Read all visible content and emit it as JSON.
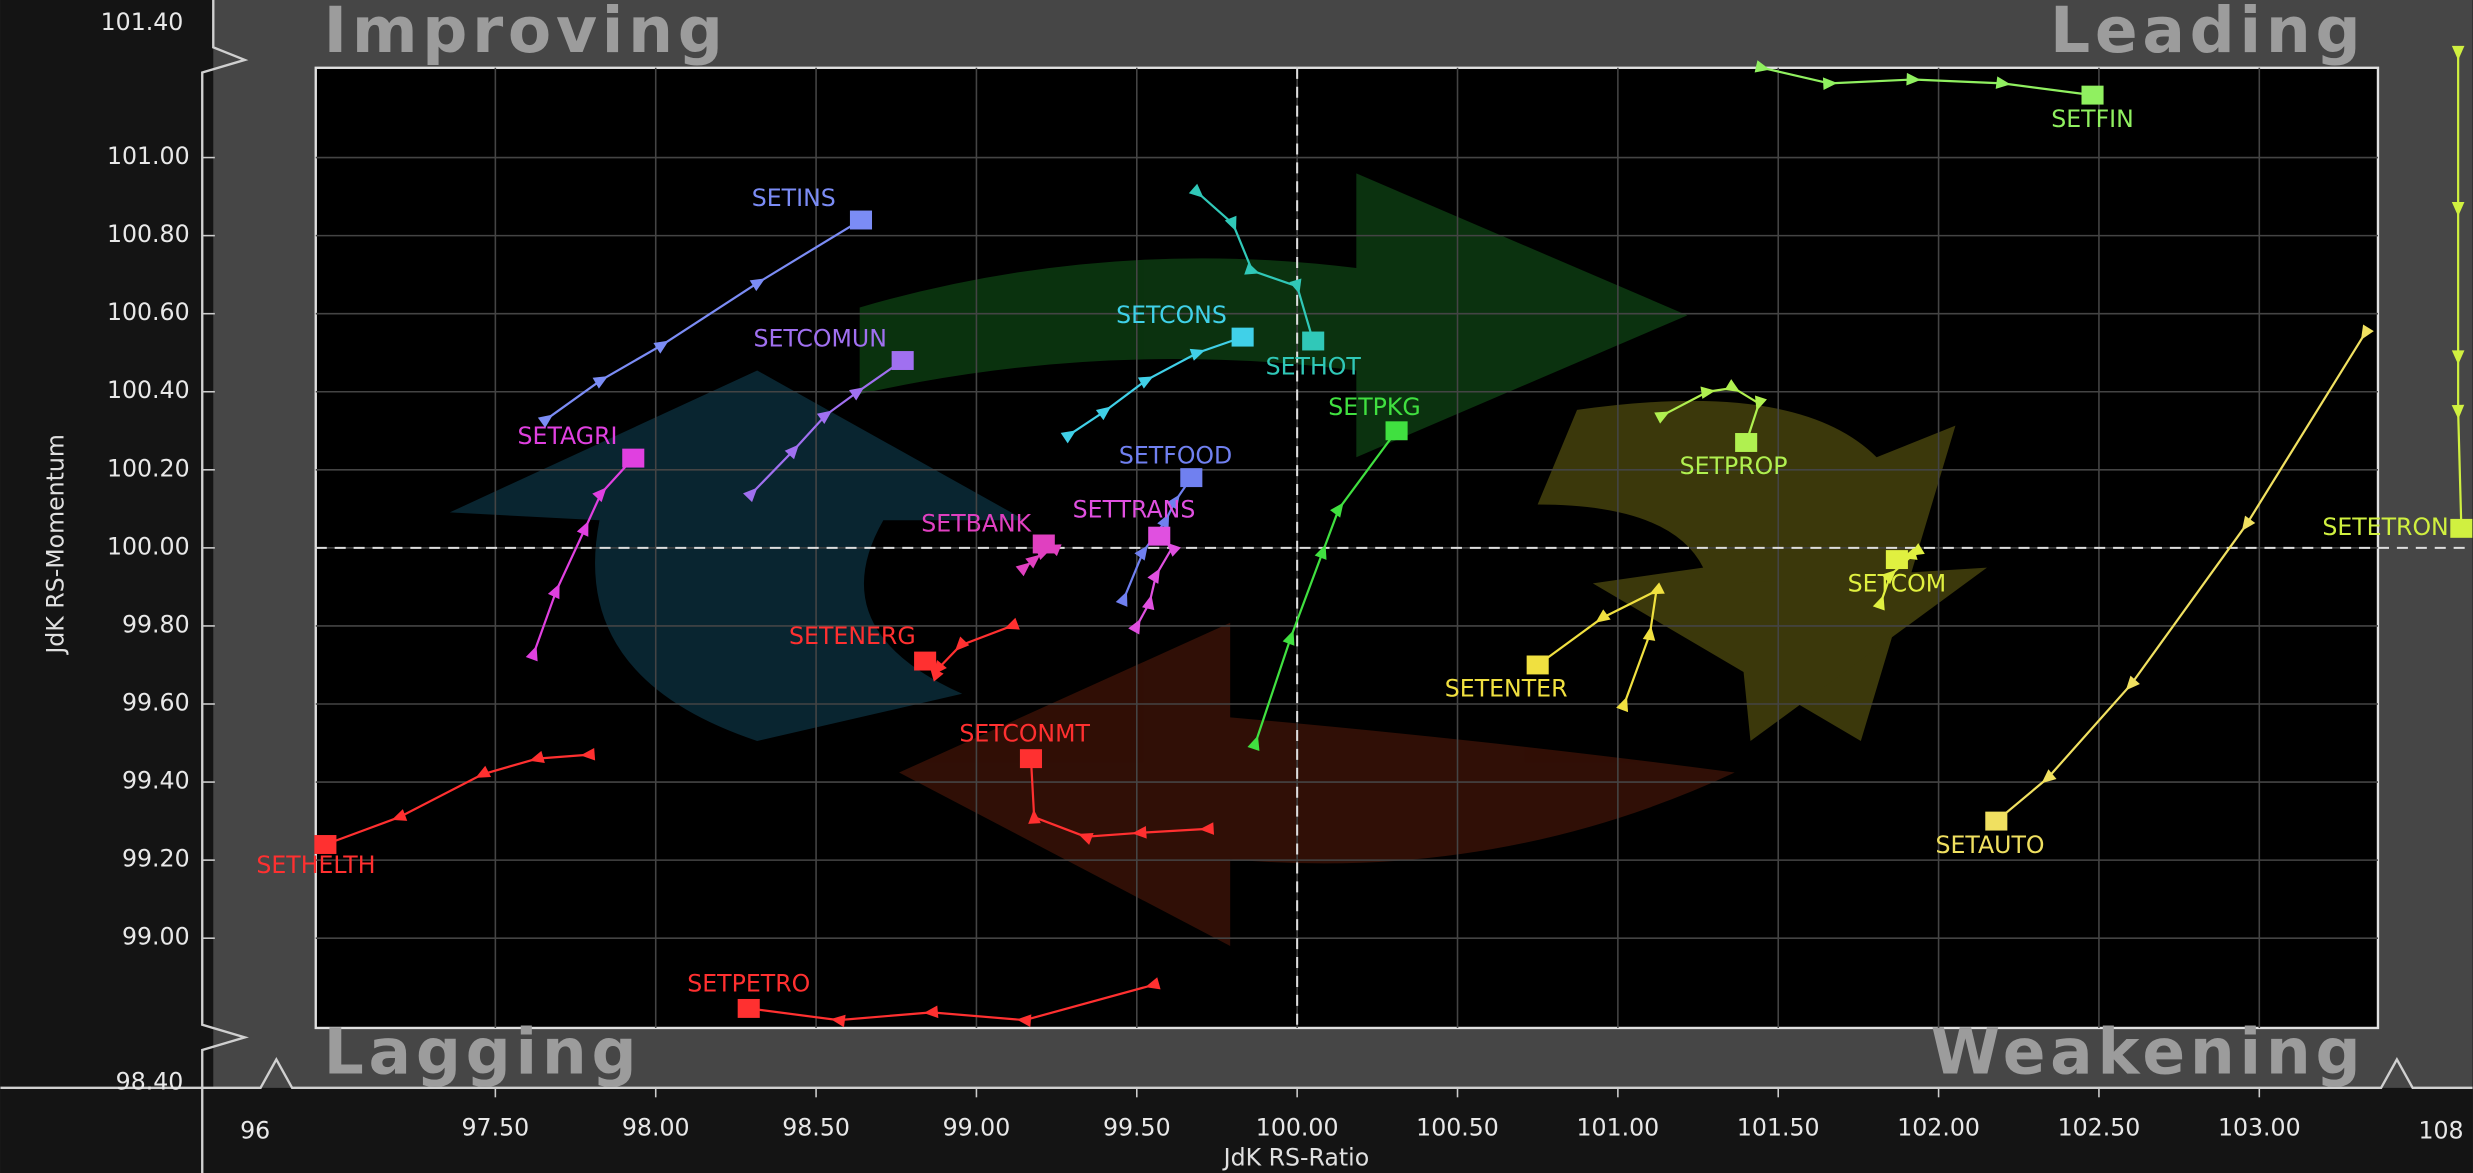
{
  "chart_data": {
    "type": "rrg",
    "x_label": "JdK RS-Ratio",
    "y_label": "JdK RS-Momentum",
    "quadrants": [
      "Improving",
      "Leading",
      "Lagging",
      "Weakening"
    ],
    "xlim": [
      96.94,
      103.37
    ],
    "ylim": [
      98.77,
      101.23
    ],
    "xticks": [
      {
        "value": 97.5,
        "label": "97.50"
      },
      {
        "value": 98,
        "label": "98.00"
      },
      {
        "value": 98.5,
        "label": "98.50"
      },
      {
        "value": 99,
        "label": "99.00"
      },
      {
        "value": 99.5,
        "label": "99.50"
      },
      {
        "value": 100,
        "label": "100.00"
      },
      {
        "value": 100.5,
        "label": "100.50"
      },
      {
        "value": 101,
        "label": "101.00"
      },
      {
        "value": 101.5,
        "label": "101.50"
      },
      {
        "value": 102,
        "label": "102.00"
      },
      {
        "value": 102.5,
        "label": "102.50"
      },
      {
        "value": 103,
        "label": "103.00"
      }
    ],
    "yticks": [
      {
        "value": 99,
        "label": "99.00"
      },
      {
        "value": 99.2,
        "label": "99.20"
      },
      {
        "value": 99.4,
        "label": "99.40"
      },
      {
        "value": 99.6,
        "label": "99.60"
      },
      {
        "value": 99.8,
        "label": "99.80"
      },
      {
        "value": 100,
        "label": "100.00"
      },
      {
        "value": 100.2,
        "label": "100.20"
      },
      {
        "value": 100.4,
        "label": "100.40"
      },
      {
        "value": 100.6,
        "label": "100.60"
      },
      {
        "value": 100.8,
        "label": "100.80"
      },
      {
        "value": 101,
        "label": "101.00"
      }
    ],
    "x_break_labels": [
      96,
      108
    ],
    "y_break_labels": [
      {
        "value": 98.4,
        "label": "98.40"
      },
      {
        "value": 101.4,
        "label": "101.40"
      }
    ],
    "center": {
      "x": 100,
      "y": 100
    },
    "grid": true,
    "series": [
      {
        "name": "SETINS",
        "color": "#7b8cf5",
        "x": [
          97.66,
          97.83,
          98.02,
          98.32,
          98.64
        ],
        "values": [
          100.33,
          100.43,
          100.52,
          100.68,
          100.84
        ]
      },
      {
        "name": "SETCOMUN",
        "color": "#a070f0",
        "x": [
          98.3,
          98.43,
          98.53,
          98.63,
          98.77
        ],
        "values": [
          100.14,
          100.25,
          100.34,
          100.4,
          100.48
        ]
      },
      {
        "name": "SETAGRI",
        "color": "#e040e0",
        "x": [
          97.62,
          97.69,
          97.78,
          97.83,
          97.93
        ],
        "values": [
          99.73,
          99.89,
          100.05,
          100.14,
          100.23
        ]
      },
      {
        "name": "SETCONS",
        "color": "#40d0e8",
        "x": [
          99.29,
          99.4,
          99.53,
          99.69,
          99.83
        ],
        "values": [
          100.29,
          100.35,
          100.43,
          100.5,
          100.54
        ]
      },
      {
        "name": "SETHOT",
        "color": "#30c8b8",
        "x": [
          99.69,
          99.8,
          99.86,
          100.0,
          100.05
        ],
        "values": [
          100.91,
          100.83,
          100.71,
          100.67,
          100.53
        ]
      },
      {
        "name": "SETPKG",
        "color": "#40e040",
        "x": [
          99.87,
          99.98,
          100.08,
          100.13,
          100.31
        ],
        "values": [
          99.5,
          99.77,
          99.99,
          100.1,
          100.3
        ]
      },
      {
        "name": "SETFOOD",
        "color": "#7080f0",
        "x": [
          99.46,
          99.52,
          99.59,
          99.62,
          99.67
        ],
        "values": [
          99.87,
          99.99,
          100.07,
          100.12,
          100.18
        ]
      },
      {
        "name": "SETTRANS",
        "color": "#e050e0",
        "x": [
          99.5,
          99.54,
          99.56,
          99.61,
          99.57
        ],
        "values": [
          99.8,
          99.86,
          99.93,
          100.0,
          100.03
        ]
      },
      {
        "name": "SETBANK",
        "color": "#e040c0",
        "x": [
          99.15,
          99.18,
          99.21,
          99.24,
          99.21
        ],
        "values": [
          99.95,
          99.97,
          99.99,
          100.0,
          100.01
        ]
      },
      {
        "name": "SETENERG",
        "color": "#ff3030",
        "x": [
          99.11,
          98.95,
          98.88,
          98.87,
          98.84
        ],
        "values": [
          99.8,
          99.75,
          99.69,
          99.68,
          99.71
        ]
      },
      {
        "name": "SETCONMT",
        "color": "#ff3030",
        "x": [
          99.72,
          99.51,
          99.34,
          99.18,
          99.17
        ],
        "values": [
          99.28,
          99.27,
          99.26,
          99.31,
          99.46
        ]
      },
      {
        "name": "SETHELTH",
        "color": "#ff3030",
        "x": [
          97.79,
          97.63,
          97.46,
          97.2,
          96.97
        ],
        "values": [
          99.47,
          99.46,
          99.42,
          99.31,
          99.24
        ]
      },
      {
        "name": "SETPETRO",
        "color": "#ff3030",
        "x": [
          99.55,
          99.15,
          98.86,
          98.57,
          98.29
        ],
        "values": [
          98.88,
          98.79,
          98.81,
          98.79,
          98.82
        ]
      },
      {
        "name": "SETFIN",
        "color": "#90f060",
        "x": [
          101.45,
          101.66,
          101.92,
          102.2,
          102.48
        ],
        "values": [
          101.23,
          101.19,
          101.2,
          101.19,
          101.16
        ]
      },
      {
        "name": "SETPROP",
        "color": "#b0f050",
        "x": [
          101.14,
          101.28,
          101.36,
          101.44,
          101.4
        ],
        "values": [
          100.34,
          100.4,
          100.41,
          100.37,
          100.27
        ]
      },
      {
        "name": "SETCOM",
        "color": "#e0f040",
        "x": [
          101.82,
          101.85,
          101.93,
          101.91,
          101.87
        ],
        "values": [
          99.86,
          99.93,
          99.99,
          99.98,
          99.97
        ]
      },
      {
        "name": "SETENTER",
        "color": "#f0e040",
        "x": [
          101.02,
          101.1,
          101.12,
          100.95,
          100.75
        ],
        "values": [
          99.6,
          99.78,
          99.89,
          99.82,
          99.7
        ]
      },
      {
        "name": "SETAUTO",
        "color": "#f0e060",
        "x": [
          103.33,
          102.96,
          102.6,
          102.34,
          102.18
        ],
        "values": [
          100.55,
          100.06,
          99.65,
          99.41,
          99.3
        ]
      },
      {
        "name": "SETETRON",
        "color": "#d0f040",
        "x": [
          103.62,
          103.62,
          103.62,
          103.62,
          103.63
        ],
        "values": [
          101.27,
          100.87,
          100.49,
          100.35,
          100.05
        ]
      }
    ]
  }
}
